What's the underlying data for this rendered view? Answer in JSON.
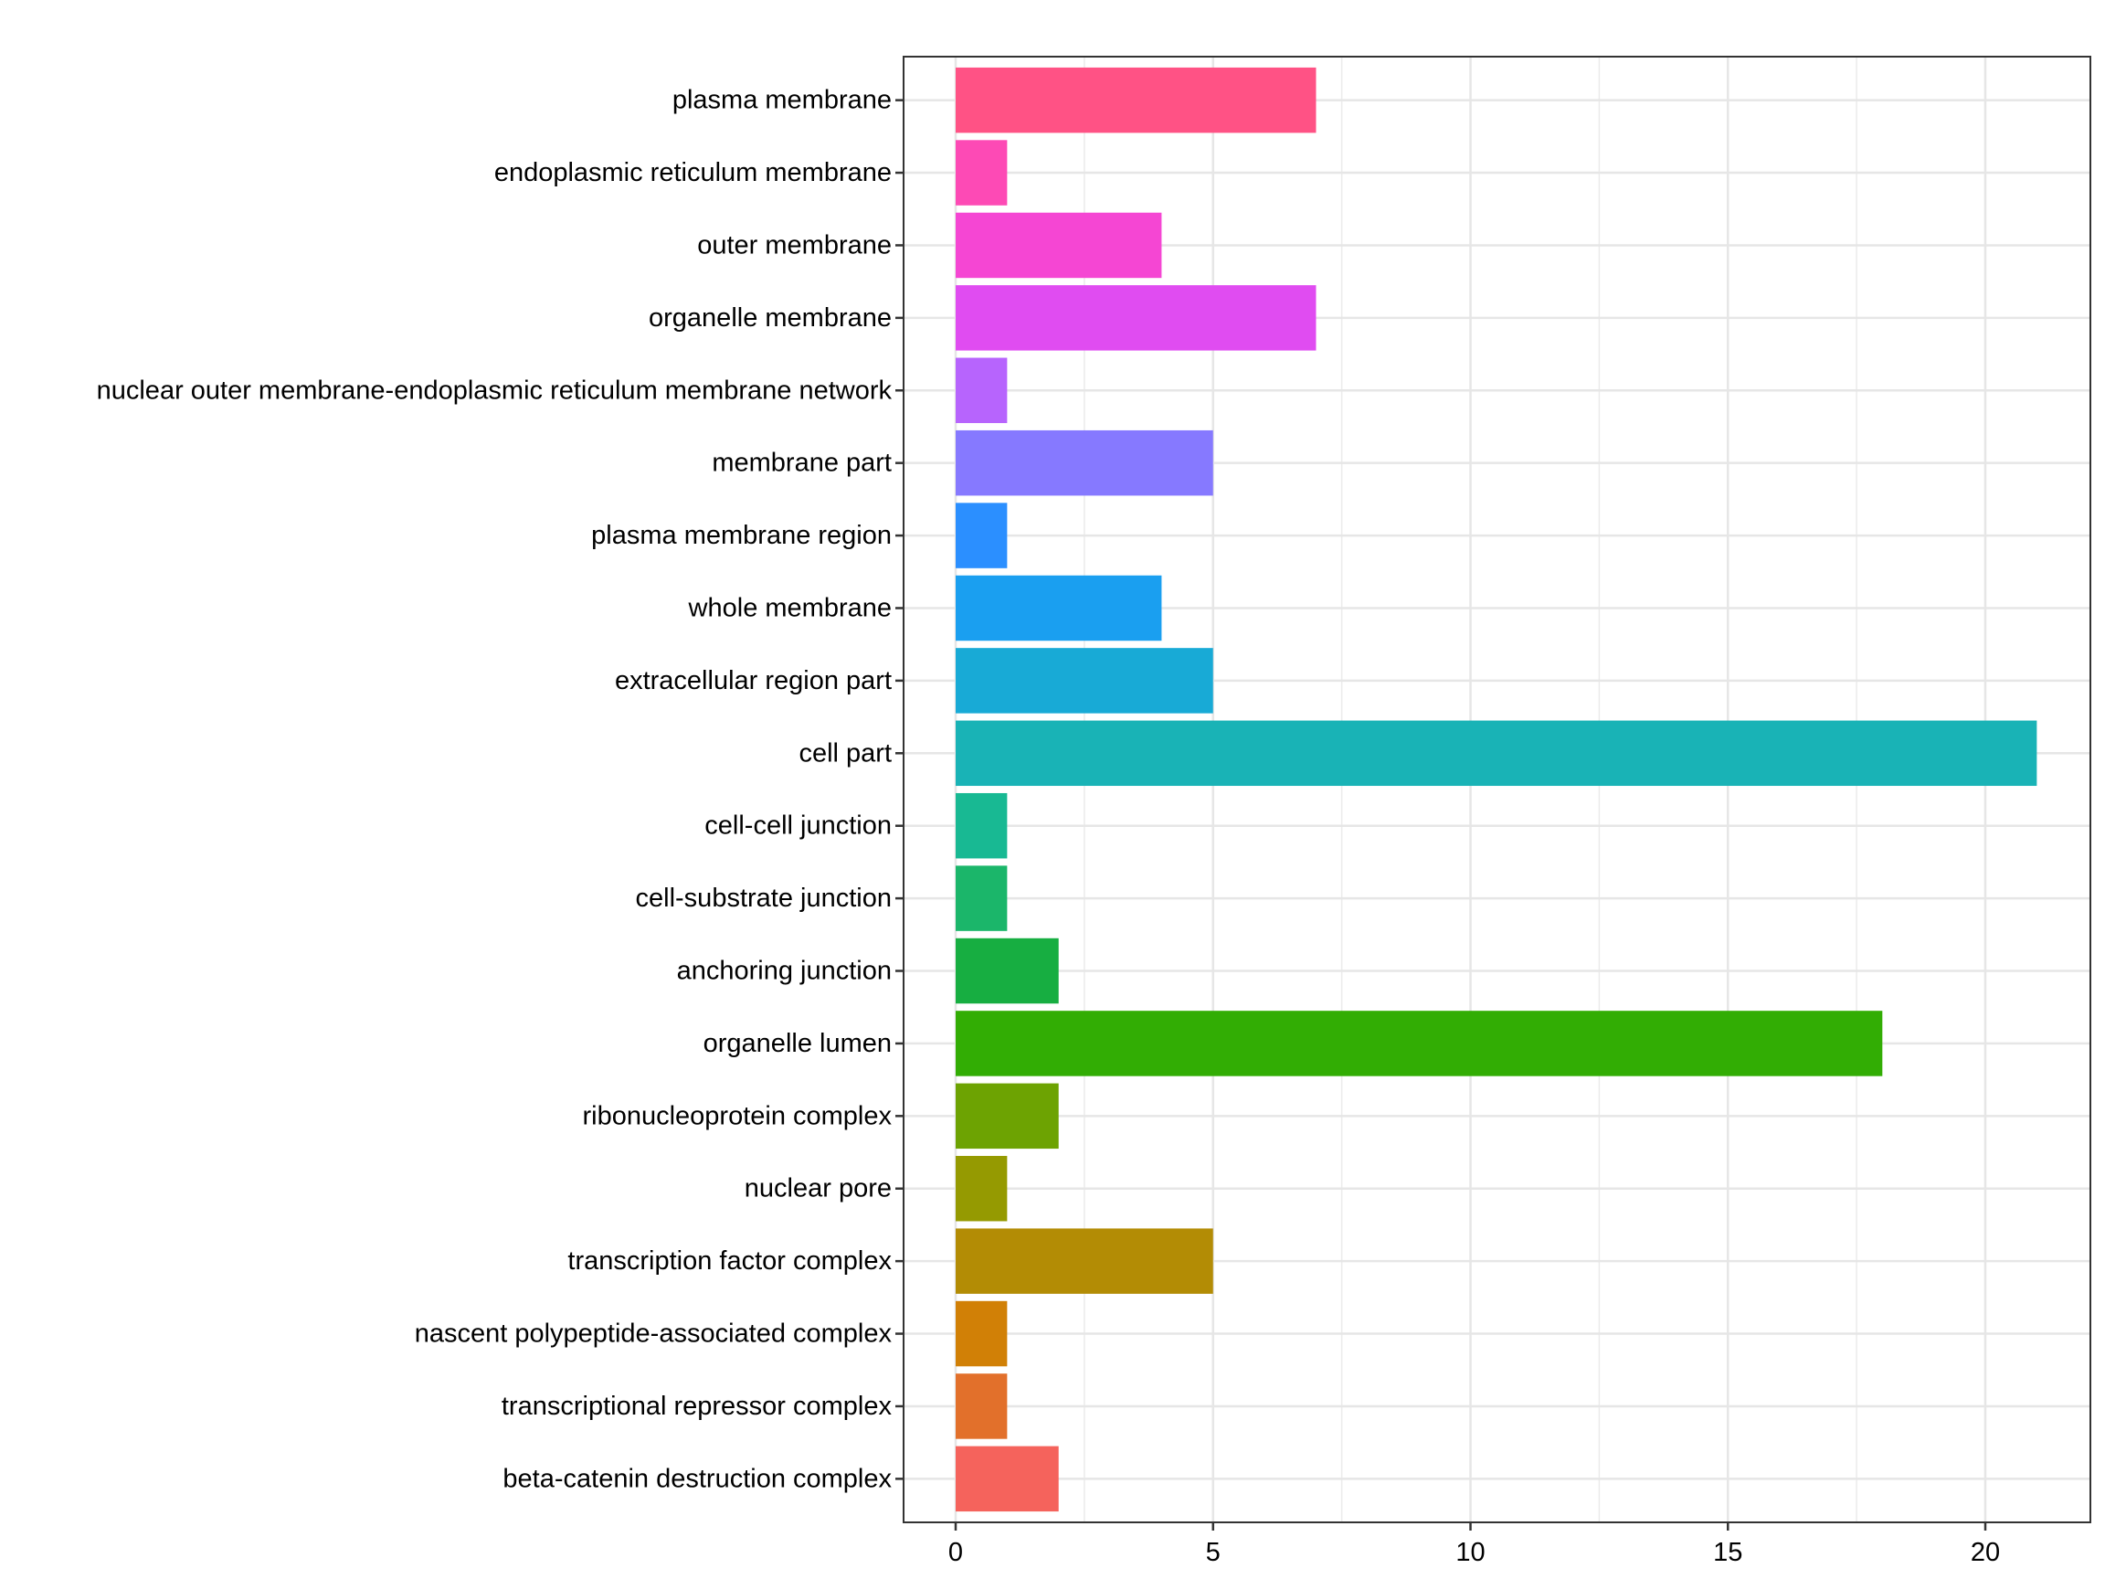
{
  "chart_data": {
    "type": "bar",
    "orientation": "horizontal",
    "title": "",
    "xlabel": "",
    "ylabel": "",
    "xlim": [
      -1.05,
      22.05
    ],
    "xticks": [
      0,
      5,
      10,
      15,
      20
    ],
    "grid": true,
    "legend": "none",
    "categories": [
      "plasma membrane",
      "endoplasmic reticulum membrane",
      "outer membrane",
      "organelle membrane",
      "nuclear outer membrane-endoplasmic reticulum membrane network",
      "membrane part",
      "plasma membrane region",
      "whole membrane",
      "extracellular region part",
      "cell part",
      "cell-cell junction",
      "cell-substrate junction",
      "anchoring junction",
      "organelle lumen",
      "ribonucleoprotein complex",
      "nuclear pore",
      "transcription factor complex",
      "nascent polypeptide-associated complex",
      "transcriptional repressor complex",
      "beta-catenin destruction complex"
    ],
    "values": [
      7,
      1,
      4,
      7,
      1,
      5,
      1,
      4,
      5,
      21,
      1,
      1,
      2,
      18,
      2,
      1,
      5,
      1,
      1,
      2
    ],
    "colors": [
      "#FF5285",
      "#FD4AB5",
      "#F546D3",
      "#E04CF1",
      "#B764FD",
      "#8679FF",
      "#2B8FFF",
      "#1A9FF0",
      "#18AAD6",
      "#19B3B6",
      "#18B993",
      "#1BB66A",
      "#17AE41",
      "#32AD04",
      "#6DA302",
      "#959A01",
      "#B38C05",
      "#D18006",
      "#E2702B",
      "#F5635C"
    ]
  }
}
